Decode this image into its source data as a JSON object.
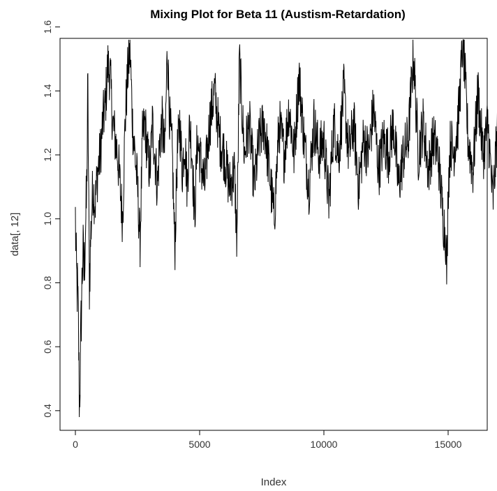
{
  "chart_data": {
    "type": "line",
    "title": "Mixing Plot for Beta 11 (Austism-Retardation)",
    "xlabel": "Index",
    "ylabel": "data[, 12]",
    "xlim": [
      0,
      17500
    ],
    "ylim": [
      0.38,
      1.56
    ],
    "x_ticks": [
      0,
      5000,
      10000,
      15000
    ],
    "y_ticks": [
      0.4,
      0.6,
      0.8,
      1.0,
      1.2,
      1.4,
      1.6
    ],
    "grid": false,
    "legend": "none",
    "series": [
      {
        "color": "#000000",
        "x": [
          0,
          40,
          80,
          120,
          160,
          200,
          250,
          300,
          350,
          400,
          450,
          500,
          560,
          620,
          700,
          800,
          900,
          1000,
          1100,
          1200,
          1300,
          1400,
          1500,
          1600,
          1700,
          1800,
          1900,
          2000,
          2100,
          2200,
          2300,
          2400,
          2500,
          2600,
          2700,
          2800,
          2900,
          3000,
          3100,
          3200,
          3300,
          3400,
          3500,
          3600,
          3700,
          3800,
          3900,
          4000,
          4100,
          4200,
          4300,
          4400,
          4500,
          4600,
          4700,
          4800,
          4900,
          5000,
          5200,
          5400,
          5600,
          5800,
          6000,
          6200,
          6400,
          6500,
          6600,
          6800,
          7000,
          7200,
          7400,
          7600,
          7800,
          8000,
          8200,
          8400,
          8600,
          8800,
          9000,
          9200,
          9400,
          9600,
          9800,
          10000,
          10200,
          10400,
          10600,
          10800,
          11000,
          11200,
          11400,
          11600,
          11800,
          12000,
          12200,
          12400,
          12600,
          12800,
          13000,
          13200,
          13400,
          13600,
          13800,
          14000,
          14200,
          14400,
          14600,
          14800,
          14900,
          14950,
          15000,
          15100,
          15200,
          15400,
          15600,
          15800,
          16000,
          16200,
          16400,
          16600,
          16800,
          17000,
          17200,
          17400,
          17500
        ],
        "values": [
          1.0,
          0.82,
          0.78,
          0.68,
          0.4,
          0.55,
          0.75,
          0.9,
          0.82,
          0.97,
          1.05,
          1.42,
          0.8,
          0.95,
          1.1,
          1.05,
          1.15,
          1.2,
          1.3,
          1.35,
          1.48,
          1.45,
          1.3,
          1.25,
          1.2,
          1.1,
          1.0,
          1.3,
          1.45,
          1.53,
          1.3,
          1.2,
          1.1,
          0.92,
          1.25,
          1.3,
          1.2,
          1.15,
          1.3,
          1.2,
          1.1,
          1.25,
          1.3,
          1.2,
          1.54,
          1.3,
          1.2,
          0.9,
          1.2,
          1.3,
          1.15,
          1.25,
          1.1,
          1.3,
          1.2,
          1.0,
          1.25,
          1.2,
          1.1,
          1.3,
          1.4,
          1.25,
          1.2,
          1.1,
          1.15,
          0.93,
          1.5,
          1.2,
          1.3,
          1.1,
          1.25,
          1.3,
          1.15,
          1.0,
          1.3,
          1.2,
          1.35,
          1.2,
          1.45,
          1.25,
          1.1,
          1.3,
          1.2,
          1.25,
          1.05,
          1.3,
          1.2,
          1.4,
          1.2,
          1.3,
          1.1,
          1.25,
          1.2,
          1.35,
          1.15,
          1.25,
          1.2,
          1.3,
          1.1,
          1.2,
          1.25,
          1.52,
          1.2,
          1.3,
          1.15,
          1.25,
          1.2,
          1.0,
          0.95,
          0.82,
          1.1,
          1.25,
          1.2,
          1.3,
          1.56,
          1.25,
          1.15,
          1.4,
          1.2,
          1.3,
          1.05,
          1.3,
          1.2,
          1.35,
          1.1
        ]
      }
    ]
  }
}
